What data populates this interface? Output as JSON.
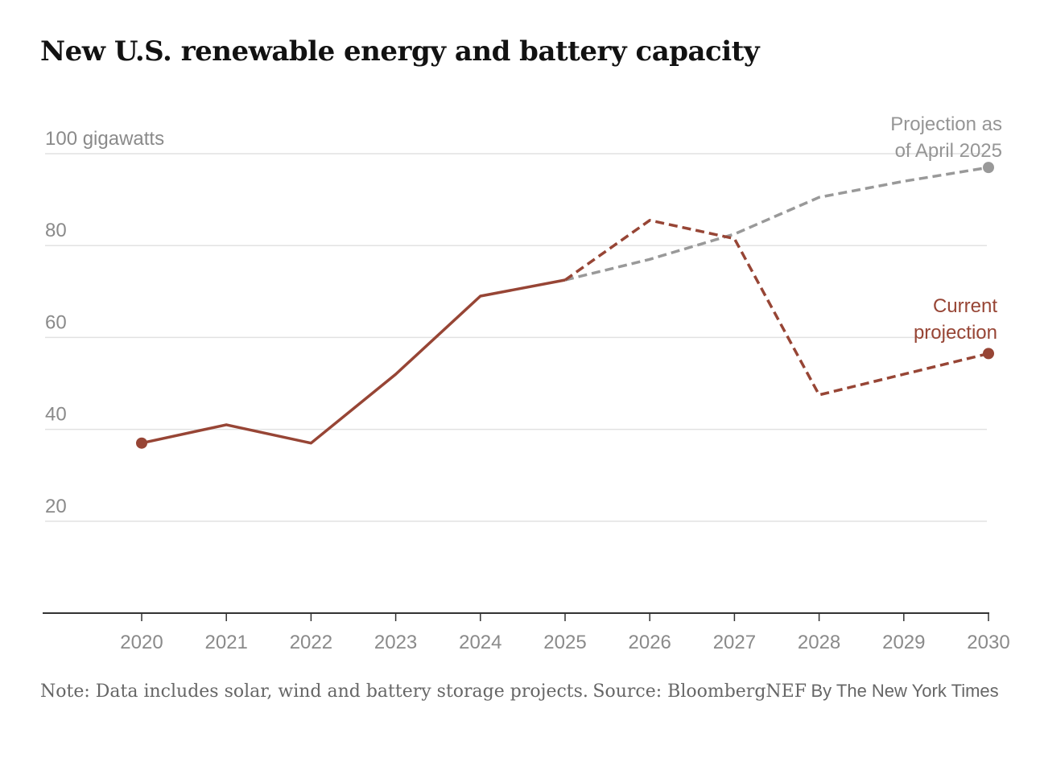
{
  "title": "New U.S. renewable energy and battery capacity",
  "colors": {
    "current": "#974535",
    "april": "#999999",
    "grid": "#e2e2e2",
    "axis_text": "#8a8a8a",
    "baseline": "#333333"
  },
  "footer": {
    "note": "Note: Data includes solar, wind and battery storage projects.",
    "source": "Source: BloombergNEF",
    "byline": "By The New York Times"
  },
  "chart_data": {
    "type": "line",
    "title": "New U.S. renewable energy and battery capacity",
    "y_unit_label": "100 gigawatts",
    "ylim": [
      0,
      100
    ],
    "yticks": [
      20,
      40,
      60,
      80,
      100
    ],
    "ytick_labels": [
      "20",
      "40",
      "60",
      "80",
      "100 gigawatts"
    ],
    "x": [
      2020,
      2021,
      2022,
      2023,
      2024,
      2025,
      2026,
      2027,
      2028,
      2029,
      2030
    ],
    "xtick_labels": [
      "2020",
      "2021",
      "2022",
      "2023",
      "2024",
      "2025",
      "2026",
      "2027",
      "2028",
      "2029",
      "2030"
    ],
    "grid": true,
    "series": [
      {
        "name": "Current projection",
        "label": "Current projection",
        "color": "#974535",
        "x": [
          2020,
          2021,
          2022,
          2023,
          2024,
          2025,
          2026,
          2027,
          2028,
          2029,
          2030
        ],
        "values": [
          37,
          41,
          37,
          52,
          69,
          72.5,
          85.5,
          81.5,
          47.5,
          52,
          56.5
        ],
        "actual_through": 2025,
        "style": "solid through 2025, dashed after"
      },
      {
        "name": "Projection as of April 2025",
        "label": "Projection as of April 2025",
        "color": "#999999",
        "x": [
          2025,
          2026,
          2027,
          2028,
          2029,
          2030
        ],
        "values": [
          72.5,
          77,
          82.5,
          90.5,
          94,
          97
        ],
        "style": "dashed"
      }
    ]
  }
}
